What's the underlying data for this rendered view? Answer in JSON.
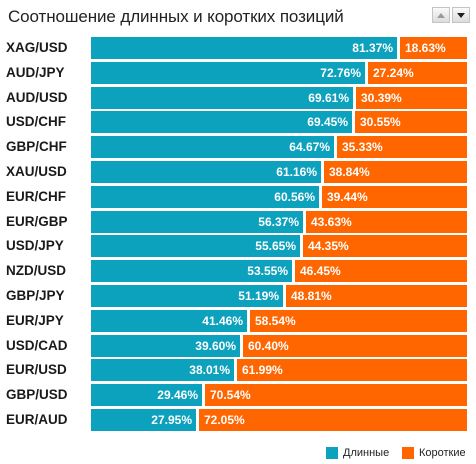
{
  "title": "Соотношение длинных и коротких позиций",
  "controls": {
    "up_icon": "arrow-up-icon",
    "down_icon": "arrow-down-icon"
  },
  "colors": {
    "long": "#0ca1bd",
    "short": "#ff6600"
  },
  "chart_data": {
    "type": "bar",
    "orientation": "horizontal",
    "stacked": true,
    "title": "Соотношение длинных и коротких позиций",
    "categories": [
      "XAG/USD",
      "AUD/JPY",
      "AUD/USD",
      "USD/CHF",
      "GBP/CHF",
      "XAU/USD",
      "EUR/CHF",
      "EUR/GBP",
      "USD/JPY",
      "NZD/USD",
      "GBP/JPY",
      "EUR/JPY",
      "USD/CAD",
      "EUR/USD",
      "GBP/USD",
      "EUR/AUD"
    ],
    "series": [
      {
        "name": "Длинные",
        "values": [
          81.37,
          72.76,
          69.61,
          69.45,
          64.67,
          61.16,
          60.56,
          56.37,
          55.65,
          53.55,
          51.19,
          41.46,
          39.6,
          38.01,
          29.46,
          27.95
        ],
        "labels": [
          "81.37%",
          "72.76%",
          "69.61%",
          "69.45%",
          "64.67%",
          "61.16%",
          "60.56%",
          "56.37%",
          "55.65%",
          "53.55%",
          "51.19%",
          "41.46%",
          "39.60%",
          "38.01%",
          "29.46%",
          "27.95%"
        ]
      },
      {
        "name": "Короткие",
        "values": [
          18.63,
          27.24,
          30.39,
          30.55,
          35.33,
          38.84,
          39.44,
          43.63,
          44.35,
          46.45,
          48.81,
          58.54,
          60.4,
          61.99,
          70.54,
          72.05
        ],
        "labels": [
          "18.63%",
          "27.24%",
          "30.39%",
          "30.55%",
          "35.33%",
          "38.84%",
          "39.44%",
          "43.63%",
          "44.35%",
          "46.45%",
          "48.81%",
          "58.54%",
          "60.40%",
          "61.99%",
          "70.54%",
          "72.05%"
        ]
      }
    ],
    "xlim": [
      0,
      100
    ],
    "grid": false,
    "legend": "bottom-right"
  },
  "legend": {
    "long": "Длинные",
    "short": "Короткие"
  }
}
